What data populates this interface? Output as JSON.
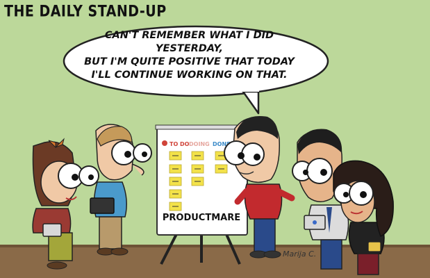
{
  "title": "THE DAILY STAND-UP",
  "speech": {
    "lines": [
      "CAN'T REMEMBER WHAT I DID YESTERDAY,",
      "BUT I'M QUITE POSITIVE THAT TODAY",
      "I'LL CONTINUE WORKING ON THAT."
    ]
  },
  "board": {
    "label": "PRODUCTMARE",
    "columns": [
      "TO DO",
      "DOING",
      "DONE"
    ]
  },
  "signature": "Marija C.",
  "colors": {
    "background": "#bcd89a",
    "floor": "#8a6a48",
    "sticky": "#f3e24a",
    "todo_header": "#d0443a",
    "doing_header": "#e6a8a0",
    "done_header": "#3a8ac8"
  }
}
